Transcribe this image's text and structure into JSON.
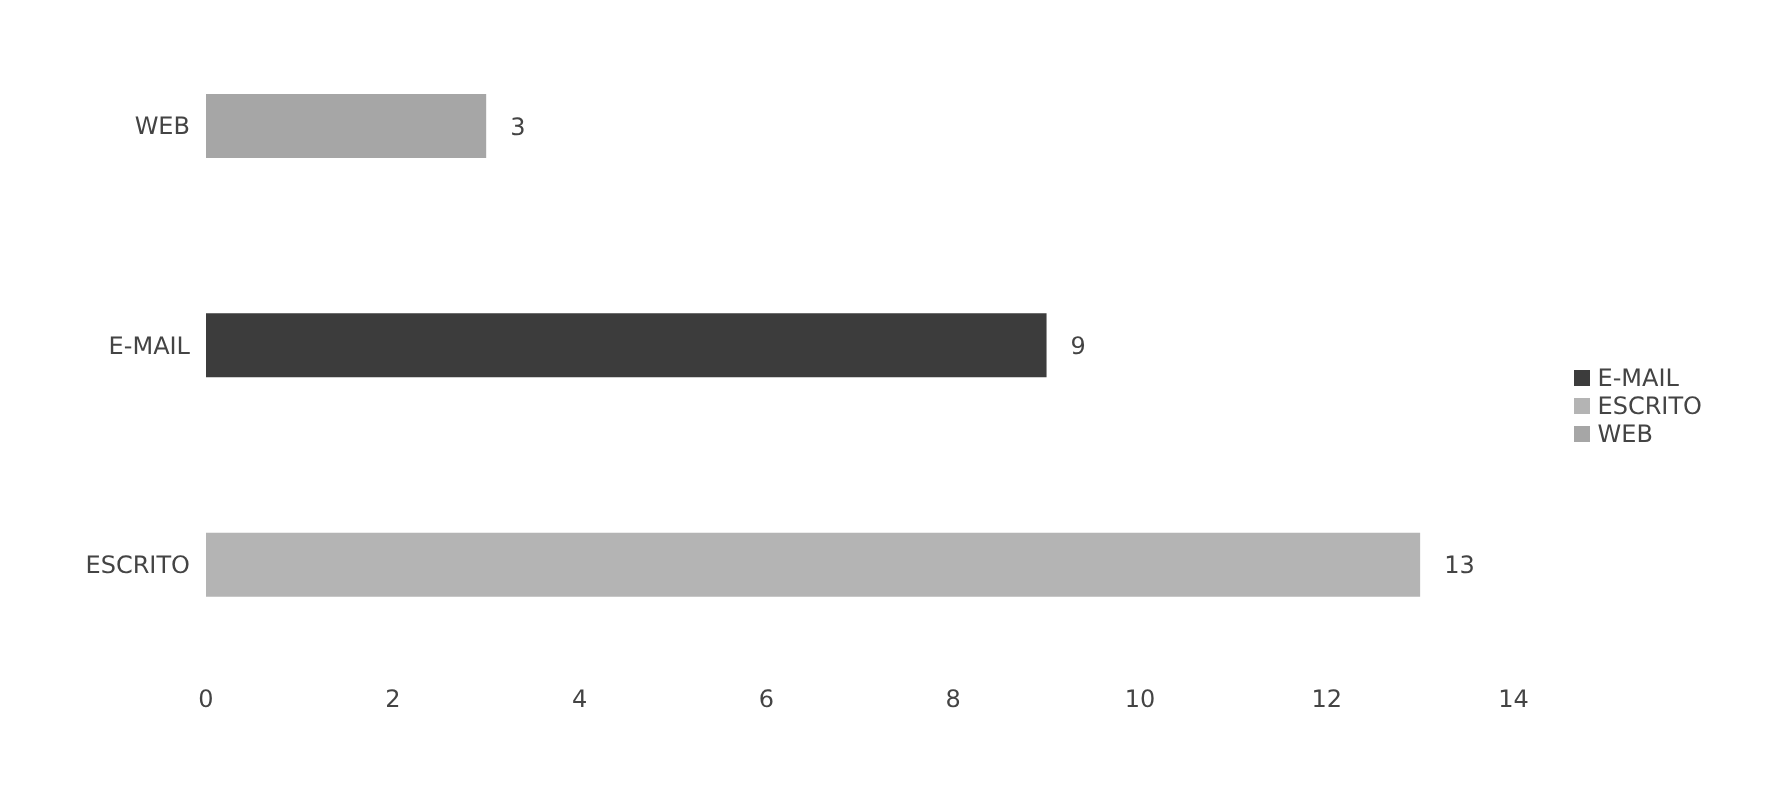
{
  "chart_data": {
    "type": "bar",
    "orientation": "horizontal",
    "stacked": true,
    "categories": [
      "WEB",
      "E-MAIL",
      "ESCRITO"
    ],
    "series": [
      {
        "name": "ESCRITO",
        "color": "#b4b4b4",
        "values": [
          null,
          null,
          13
        ]
      },
      {
        "name": "E-MAIL",
        "color": "#3c3c3c",
        "values": [
          null,
          9,
          null
        ]
      },
      {
        "name": "WEB",
        "color": "#a6a6a6",
        "values": [
          3,
          null,
          null
        ]
      }
    ],
    "xlim": [
      0,
      14
    ],
    "xticks": [
      0,
      2,
      4,
      6,
      8,
      10,
      12,
      14
    ],
    "grid": false,
    "legend": "right",
    "data_labels": true
  }
}
